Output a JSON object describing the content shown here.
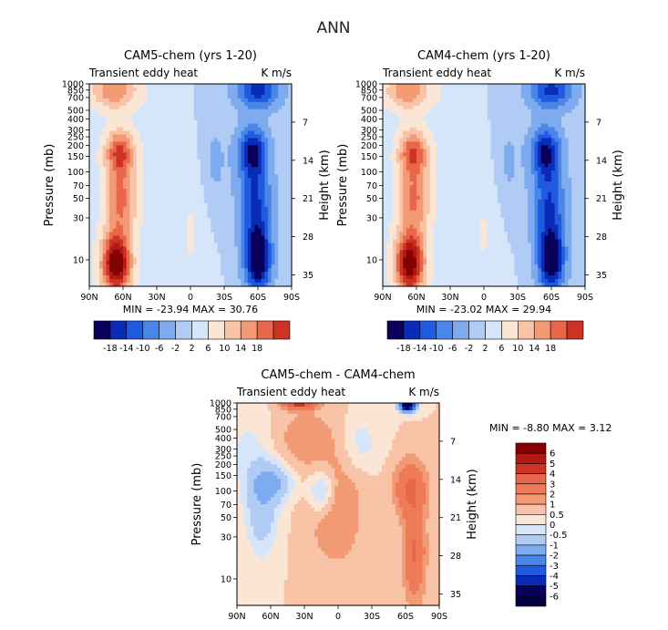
{
  "figure": {
    "title": "ANN"
  },
  "colors": {
    "diverging_18": [
      "#08005a",
      "#0a2ab8",
      "#1f5be0",
      "#4a86e8",
      "#7eaaf0",
      "#b0ccf5",
      "#d6e6fa",
      "#fbe6d6",
      "#f8c3a6",
      "#f29a74",
      "#e8664a",
      "#cc3322",
      "#b01a10",
      "#850000"
    ],
    "diff_6": [
      "#08005a",
      "#0a2ab8",
      "#1f5be0",
      "#4a86e8",
      "#7eaaf0",
      "#b0ccf5",
      "#d6e6fa",
      "#fbe6d6",
      "#f8c3a6",
      "#f29a74",
      "#ee7a58",
      "#e8664a",
      "#cc3322",
      "#850000"
    ]
  },
  "chart_data": [
    {
      "type": "heatmap",
      "title": "CAM5-chem (yrs 1-20)",
      "left_label": "Transient eddy heat",
      "right_label": "K m/s",
      "ylabel": "Pressure (mb)",
      "ylabel_right": "Height (km)",
      "x_ticks": [
        "90N",
        "60N",
        "30N",
        "0",
        "30S",
        "60S",
        "90S"
      ],
      "x_values": [
        90,
        60,
        30,
        0,
        -30,
        -60,
        -90
      ],
      "y_ticks": [
        "10",
        "30",
        "50",
        "70",
        "100",
        "150",
        "200",
        "250",
        "300",
        "400",
        "500",
        "700",
        "850",
        "1000"
      ],
      "y_values": [
        10,
        30,
        50,
        70,
        100,
        150,
        200,
        250,
        300,
        400,
        500,
        700,
        850,
        1000
      ],
      "height_ticks": [
        "35",
        "28",
        "21",
        "14",
        "7"
      ],
      "height_values": [
        35,
        28,
        21,
        14,
        7
      ],
      "stats": "MIN = -23.94   MAX = 30.76",
      "min": -23.94,
      "max": 30.76,
      "colorbar_levels": [
        "-18",
        "-14",
        "-10",
        "-6",
        "-2",
        "2",
        "6",
        "10",
        "14",
        "18"
      ],
      "features": [
        {
          "lat": 66,
          "p": 8,
          "value": 30.76
        },
        {
          "lat": 63,
          "p": 170,
          "value": 16
        },
        {
          "lat": 68,
          "p": 850,
          "value": 14
        },
        {
          "lat": -60,
          "p": 10,
          "value": -23.94
        },
        {
          "lat": -55,
          "p": 170,
          "value": -18
        },
        {
          "lat": -60,
          "p": 850,
          "value": -16
        }
      ]
    },
    {
      "type": "heatmap",
      "title": "CAM4-chem (yrs 1-20)",
      "left_label": "Transient eddy heat",
      "right_label": "K m/s",
      "ylabel": "Pressure (mb)",
      "ylabel_right": "Height (km)",
      "x_ticks": [
        "90N",
        "60N",
        "30N",
        "0",
        "30S",
        "60S",
        "90S"
      ],
      "x_values": [
        90,
        60,
        30,
        0,
        -30,
        -60,
        -90
      ],
      "y_ticks": [
        "10",
        "30",
        "50",
        "70",
        "100",
        "150",
        "200",
        "250",
        "300",
        "400",
        "500",
        "700",
        "850",
        "1000"
      ],
      "y_values": [
        10,
        30,
        50,
        70,
        100,
        150,
        200,
        250,
        300,
        400,
        500,
        700,
        850,
        1000
      ],
      "height_ticks": [
        "35",
        "28",
        "21",
        "14",
        "7"
      ],
      "height_values": [
        35,
        28,
        21,
        14,
        7
      ],
      "stats": "MIN = -23.02   MAX = 29.94",
      "min": -23.02,
      "max": 29.94,
      "colorbar_levels": [
        "-18",
        "-14",
        "-10",
        "-6",
        "-2",
        "2",
        "6",
        "10",
        "14",
        "18"
      ],
      "features": [
        {
          "lat": 66,
          "p": 8,
          "value": 29.94
        },
        {
          "lat": 63,
          "p": 170,
          "value": 15
        },
        {
          "lat": 68,
          "p": 850,
          "value": 13
        },
        {
          "lat": -60,
          "p": 10,
          "value": -23.02
        },
        {
          "lat": -55,
          "p": 170,
          "value": -17
        },
        {
          "lat": -60,
          "p": 850,
          "value": -16
        }
      ]
    },
    {
      "type": "heatmap",
      "title": "CAM5-chem - CAM4-chem",
      "left_label": "Transient eddy heat",
      "right_label": "K m/s",
      "ylabel": "Pressure (mb)",
      "ylabel_right": "Height (km)",
      "x_ticks": [
        "90N",
        "60N",
        "30N",
        "0",
        "30S",
        "60S",
        "90S"
      ],
      "x_values": [
        90,
        60,
        30,
        0,
        -30,
        -60,
        -90
      ],
      "y_ticks": [
        "10",
        "30",
        "50",
        "70",
        "100",
        "150",
        "200",
        "250",
        "300",
        "400",
        "500",
        "700",
        "850",
        "1000"
      ],
      "y_values": [
        10,
        30,
        50,
        70,
        100,
        150,
        200,
        250,
        300,
        400,
        500,
        700,
        850,
        1000
      ],
      "height_ticks": [
        "35",
        "28",
        "21",
        "14",
        "7"
      ],
      "height_values": [
        35,
        28,
        21,
        14,
        7
      ],
      "stats": "MIN =   -8.80   MAX =    3.12",
      "min": -8.8,
      "max": 3.12,
      "colorbar_levels": [
        "6",
        "5",
        "4",
        "3",
        "2",
        "1",
        "0.5",
        "0",
        "-0.5",
        "-1",
        "-2",
        "-3",
        "-4",
        "-5",
        "-6"
      ],
      "features": [
        {
          "lat": 70,
          "p": 60,
          "value": -1.5
        },
        {
          "lat": 60,
          "p": 120,
          "value": -2
        },
        {
          "lat": 15,
          "p": 100,
          "value": -1.5
        },
        {
          "lat": -68,
          "p": 20,
          "value": 2
        },
        {
          "lat": -65,
          "p": 110,
          "value": 2
        },
        {
          "lat": -60,
          "p": 950,
          "value": -8.8
        },
        {
          "lat": 35,
          "p": 980,
          "value": 3.12
        }
      ]
    }
  ]
}
